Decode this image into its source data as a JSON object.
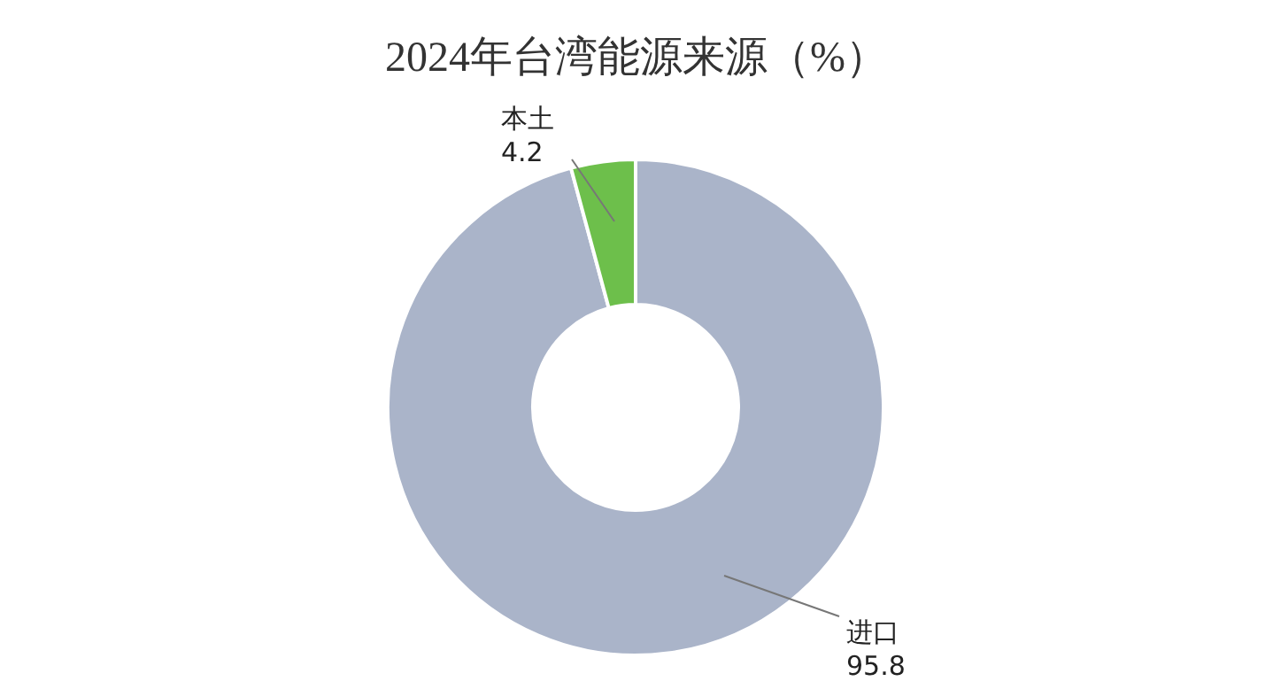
{
  "chart_data": {
    "type": "donut",
    "title": "2024年台湾能源来源（%）",
    "categories": [
      "进口",
      "本土"
    ],
    "values": [
      95.8,
      4.2
    ],
    "colors": [
      "#aab4c9",
      "#6dbf4b"
    ],
    "data_labels": true
  }
}
